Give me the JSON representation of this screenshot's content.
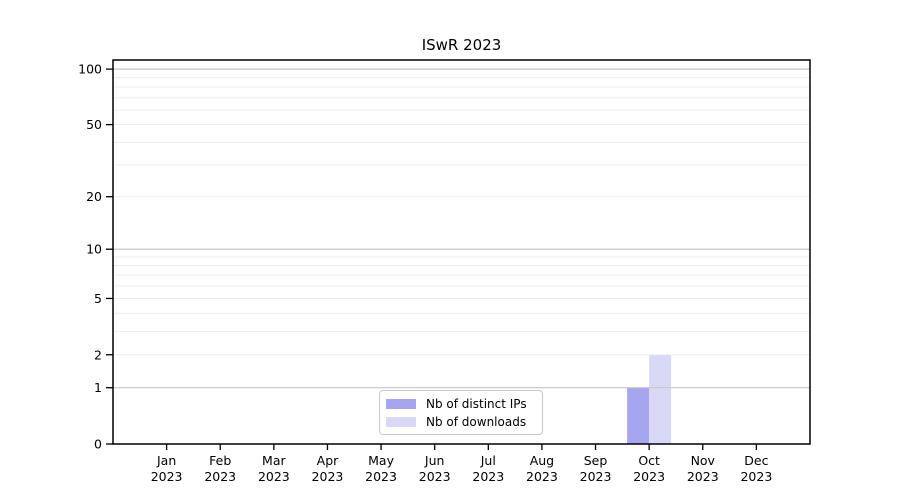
{
  "chart_data": {
    "type": "bar",
    "title": "ISwR 2023",
    "categories": [
      "Jan 2023",
      "Feb 2023",
      "Mar 2023",
      "Apr 2023",
      "May 2023",
      "Jun 2023",
      "Jul 2023",
      "Aug 2023",
      "Sep 2023",
      "Oct 2023",
      "Nov 2023",
      "Dec 2023"
    ],
    "series": [
      {
        "name": "Nb of distinct IPs",
        "color": "#a5a5f0",
        "values": [
          0,
          0,
          0,
          0,
          0,
          0,
          0,
          0,
          0,
          1,
          0,
          0
        ]
      },
      {
        "name": "Nb of downloads",
        "color": "#d9d9f7",
        "values": [
          0,
          0,
          0,
          0,
          0,
          0,
          0,
          0,
          0,
          2,
          0,
          0
        ]
      }
    ],
    "xlabel": "",
    "ylabel": "",
    "y_scale": "log1p",
    "ylim": [
      0,
      112
    ],
    "y_ticks": [
      0,
      1,
      2,
      5,
      10,
      20,
      50,
      100
    ],
    "y_major_gridlines": [
      1,
      10,
      100
    ],
    "y_minor_gridlines": [
      2,
      3,
      4,
      5,
      6,
      7,
      8,
      9,
      20,
      30,
      40,
      50,
      60,
      70,
      80,
      90
    ],
    "grid": true,
    "legend_position": "lower center"
  },
  "colors": {
    "axis": "#000000",
    "tick_label": "#000000",
    "major_grid": "#c6c6c6",
    "minor_grid": "#ededed",
    "background": "#ffffff"
  }
}
